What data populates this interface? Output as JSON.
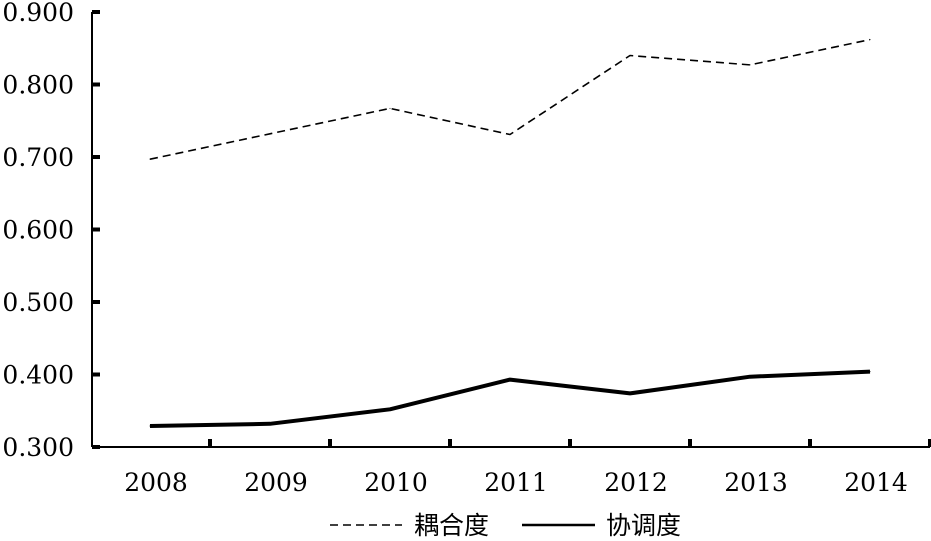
{
  "chart_data": {
    "type": "line",
    "title": "",
    "xlabel": "",
    "ylabel": "",
    "categories": [
      "2008",
      "2009",
      "2010",
      "2011",
      "2012",
      "2013",
      "2014"
    ],
    "ylim": [
      0.3,
      0.9
    ],
    "yticks": [
      "0.300",
      "0.400",
      "0.500",
      "0.600",
      "0.700",
      "0.800",
      "0.900"
    ],
    "grid": false,
    "legend_position": "bottom",
    "series": [
      {
        "name": "耦合度",
        "style": "dashed",
        "color": "#000000",
        "values": [
          0.697,
          0.732,
          0.767,
          0.731,
          0.84,
          0.827,
          0.862
        ]
      },
      {
        "name": "协调度",
        "style": "solid",
        "color": "#000000",
        "values": [
          0.329,
          0.332,
          0.352,
          0.393,
          0.374,
          0.397,
          0.404
        ]
      }
    ]
  }
}
